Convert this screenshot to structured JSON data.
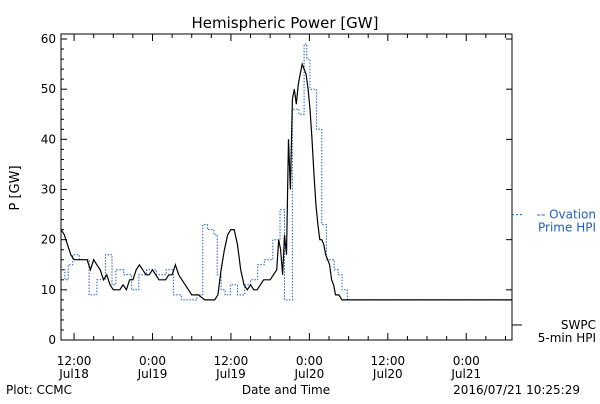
{
  "chart_data": {
    "type": "line",
    "title": "Hemispheric Power [GW]",
    "ylabel": "P [GW]",
    "xlabel": "Date and Time",
    "ylim": [
      0,
      61
    ],
    "yticks": [
      0,
      10,
      20,
      30,
      40,
      50,
      60
    ],
    "x_units": "hours since 2016-07-18 00:00",
    "xlim": [
      10,
      79
    ],
    "xticks": [
      {
        "x": 12,
        "line1": "12:00",
        "line2": "Jul18"
      },
      {
        "x": 24,
        "line1": "0:00",
        "line2": "Jul19"
      },
      {
        "x": 36,
        "line1": "12:00",
        "line2": "Jul19"
      },
      {
        "x": 48,
        "line1": "0:00",
        "line2": "Jul20"
      },
      {
        "x": 60,
        "line1": "12:00",
        "line2": "Jul20"
      },
      {
        "x": 72,
        "line1": "0:00",
        "line2": "Jul21"
      }
    ],
    "footer_left": "Plot: CCMC",
    "footer_right": "2016/07/21 10:25:29",
    "legend": [
      {
        "series": "ovation",
        "line1": "-- Ovation",
        "line2": "Prime HPI",
        "color": "#1f5fbf",
        "at_value": 25
      },
      {
        "series": "swpc",
        "line1": "SWPC",
        "line2": "5-min HPI",
        "color": "#000000",
        "at_value": 3
      }
    ],
    "series": [
      {
        "name": "Ovation Prime HPI",
        "key": "ovation",
        "color": "#1f5fbf",
        "style": "dotted-step",
        "x": [
          10,
          10.6,
          11.1,
          11.8,
          12.8,
          14.3,
          15.5,
          16.8,
          17.8,
          18.4,
          19.6,
          20.8,
          21.9,
          23.1,
          24.6,
          26.1,
          27.2,
          28.4,
          29.6,
          30.8,
          31.7,
          32.4,
          33.4,
          33.9,
          34.5,
          35.1,
          35.9,
          37.0,
          38.1,
          39.0,
          40.1,
          41.1,
          42.4,
          43.5,
          44.2,
          45.4,
          46.4,
          47.2,
          47.6,
          48.1,
          49.1,
          49.9,
          50.6,
          51.8,
          52.4,
          53.0,
          53.8,
          54.7,
          55.7,
          56.7,
          57.7,
          58.7,
          59.5,
          60.1,
          61.1,
          62.1,
          63.0,
          79.0
        ],
        "y": [
          14,
          12,
          15,
          17,
          16,
          9,
          12,
          17,
          11,
          14,
          13,
          10,
          13,
          14,
          13,
          14,
          9,
          8,
          8,
          9,
          23,
          22,
          21,
          13,
          10,
          9,
          11,
          9,
          11,
          12,
          15,
          16,
          20,
          26,
          8,
          46,
          45,
          59,
          56,
          50,
          42,
          23,
          16,
          14,
          13,
          10,
          8,
          8,
          8,
          8,
          8,
          8,
          8,
          8,
          8,
          8,
          8,
          8
        ]
      },
      {
        "name": "SWPC 5-min HPI",
        "key": "swpc",
        "color": "#000000",
        "style": "solid",
        "x": [
          10,
          10.5,
          11,
          11.5,
          12,
          12.5,
          13,
          13.5,
          14,
          14.5,
          15,
          15.5,
          16,
          16.5,
          17,
          17.5,
          18,
          18.5,
          19,
          19.5,
          20,
          20.5,
          21,
          21.5,
          22,
          22.5,
          23,
          23.5,
          24,
          24.5,
          25,
          25.5,
          26,
          26.5,
          27,
          27.5,
          28,
          28.5,
          29,
          29.5,
          30,
          31,
          32,
          32.5,
          33,
          33.5,
          34,
          34.5,
          35,
          35.5,
          36,
          36.5,
          37,
          37.5,
          38,
          38.5,
          39,
          39.5,
          40,
          40.5,
          41,
          41.5,
          42,
          42.5,
          43,
          43.3,
          43.6,
          43.9,
          44.2,
          44.5,
          44.8,
          45.1,
          45.4,
          45.7,
          46,
          46.3,
          46.6,
          46.9,
          47.2,
          47.5,
          47.8,
          48.1,
          48.4,
          48.7,
          49.0,
          49.3,
          49.6,
          49.9,
          50.2,
          50.5,
          50.8,
          51.1,
          51.4,
          51.7,
          52,
          52.5,
          53,
          53.5,
          54,
          54.5,
          55,
          55.5,
          56,
          57,
          58,
          59,
          60,
          62,
          65,
          70,
          75,
          79
        ],
        "y": [
          22,
          21,
          19,
          17,
          16,
          16,
          16,
          16,
          16,
          14,
          16,
          15,
          14,
          12,
          13,
          11,
          10,
          10,
          10,
          11,
          10,
          12,
          12,
          14,
          15,
          14,
          13,
          13,
          14,
          13,
          12,
          12,
          12,
          13,
          13,
          15,
          13,
          12,
          11,
          10,
          9,
          9,
          8,
          8,
          8,
          8,
          9,
          14,
          18,
          21,
          22,
          22,
          19,
          14,
          11,
          10,
          11,
          10,
          10,
          11,
          12,
          12,
          12,
          13,
          14,
          20,
          18,
          13,
          21,
          17,
          40,
          30,
          48,
          50,
          47,
          51,
          53,
          55,
          54,
          53,
          50,
          46,
          40,
          33,
          27,
          23,
          20,
          20,
          19,
          17,
          16,
          15,
          12,
          11,
          9,
          9,
          8,
          8,
          8,
          8,
          8,
          8,
          8,
          8,
          8,
          8,
          8,
          8,
          8,
          8,
          8,
          8
        ]
      }
    ]
  }
}
